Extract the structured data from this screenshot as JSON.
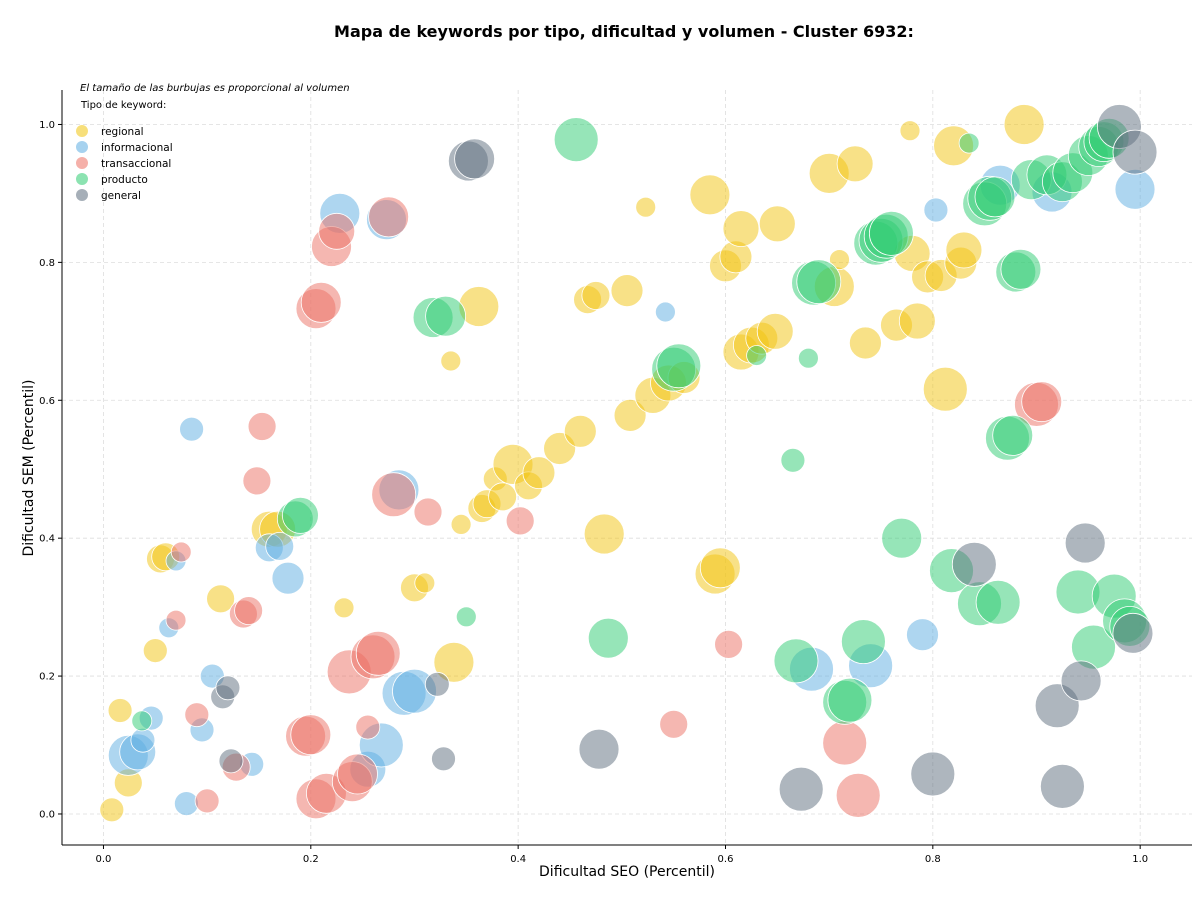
{
  "chart_data": {
    "type": "scatter",
    "title": "Mapa de keywords por tipo, dificultad y volumen - Cluster 6932:",
    "xlabel": "Dificultad SEO (Percentil)",
    "ylabel": "Dificultad SEM (Percentil)",
    "xlim": [
      -0.04,
      1.05
    ],
    "ylim": [
      -0.045,
      1.05
    ],
    "xticks": [
      "0.0",
      "0.2",
      "0.4",
      "0.6",
      "0.8",
      "1.0"
    ],
    "yticks": [
      "0.0",
      "0.2",
      "0.4",
      "0.6",
      "0.8",
      "1.0"
    ],
    "grid": true,
    "annotation": "El tamaño de las burbujas es proporcional al volumen",
    "legend": {
      "title": "Tipo de keyword:",
      "position": "top-left"
    },
    "series": [
      {
        "name": "regional",
        "color": "#F1C40F",
        "points": [
          [
            0.008,
            0.006,
            3
          ],
          [
            0.016,
            0.15,
            3
          ],
          [
            0.024,
            0.045,
            4
          ],
          [
            0.05,
            0.237,
            3
          ],
          [
            0.055,
            0.37,
            4
          ],
          [
            0.06,
            0.373,
            4
          ],
          [
            0.113,
            0.312,
            4
          ],
          [
            0.16,
            0.413,
            6
          ],
          [
            0.168,
            0.413,
            6
          ],
          [
            0.232,
            0.299,
            2
          ],
          [
            0.3,
            0.328,
            4
          ],
          [
            0.31,
            0.335,
            2
          ],
          [
            0.338,
            0.22,
            7
          ],
          [
            0.335,
            0.657,
            2
          ],
          [
            0.345,
            0.42,
            2
          ],
          [
            0.362,
            0.736,
            7
          ],
          [
            0.365,
            0.443,
            4
          ],
          [
            0.37,
            0.45,
            4
          ],
          [
            0.378,
            0.486,
            3
          ],
          [
            0.385,
            0.46,
            4
          ],
          [
            0.395,
            0.507,
            7
          ],
          [
            0.41,
            0.476,
            4
          ],
          [
            0.42,
            0.495,
            5
          ],
          [
            0.44,
            0.53,
            5
          ],
          [
            0.46,
            0.555,
            5
          ],
          [
            0.467,
            0.746,
            4
          ],
          [
            0.475,
            0.752,
            4
          ],
          [
            0.483,
            0.406,
            7
          ],
          [
            0.505,
            0.759,
            5
          ],
          [
            0.508,
            0.578,
            5
          ],
          [
            0.523,
            0.88,
            2
          ],
          [
            0.53,
            0.607,
            6
          ],
          [
            0.545,
            0.625,
            6
          ],
          [
            0.56,
            0.633,
            5
          ],
          [
            0.585,
            0.898,
            7
          ],
          [
            0.59,
            0.348,
            7
          ],
          [
            0.595,
            0.357,
            7
          ],
          [
            0.6,
            0.795,
            5
          ],
          [
            0.61,
            0.808,
            5
          ],
          [
            0.615,
            0.67,
            6
          ],
          [
            0.615,
            0.849,
            6
          ],
          [
            0.625,
            0.68,
            6
          ],
          [
            0.635,
            0.69,
            5
          ],
          [
            0.648,
            0.7,
            6
          ],
          [
            0.65,
            0.856,
            6
          ],
          [
            0.7,
            0.929,
            7
          ],
          [
            0.705,
            0.765,
            7
          ],
          [
            0.71,
            0.804,
            2
          ],
          [
            0.725,
            0.943,
            6
          ],
          [
            0.735,
            0.683,
            5
          ],
          [
            0.765,
            0.709,
            5
          ],
          [
            0.778,
            0.991,
            2
          ],
          [
            0.78,
            0.813,
            6
          ],
          [
            0.785,
            0.715,
            6
          ],
          [
            0.795,
            0.779,
            5
          ],
          [
            0.808,
            0.781,
            5
          ],
          [
            0.812,
            0.616,
            8
          ],
          [
            0.82,
            0.969,
            7
          ],
          [
            0.827,
            0.799,
            5
          ],
          [
            0.83,
            0.818,
            6
          ],
          [
            0.888,
            1.0,
            7
          ]
        ]
      },
      {
        "name": "informacional",
        "color": "#5DADE2",
        "points": [
          [
            0.024,
            0.085,
            7
          ],
          [
            0.033,
            0.09,
            6
          ],
          [
            0.038,
            0.107,
            3
          ],
          [
            0.046,
            0.139,
            3
          ],
          [
            0.063,
            0.27,
            2
          ],
          [
            0.07,
            0.367,
            2
          ],
          [
            0.08,
            0.015,
            3
          ],
          [
            0.085,
            0.558,
            3
          ],
          [
            0.095,
            0.122,
            3
          ],
          [
            0.105,
            0.2,
            3
          ],
          [
            0.143,
            0.072,
            3
          ],
          [
            0.16,
            0.386,
            4
          ],
          [
            0.17,
            0.388,
            4
          ],
          [
            0.178,
            0.342,
            5
          ],
          [
            0.228,
            0.871,
            7
          ],
          [
            0.255,
            0.065,
            6
          ],
          [
            0.268,
            0.1,
            8
          ],
          [
            0.273,
            0.862,
            7
          ],
          [
            0.285,
            0.47,
            7
          ],
          [
            0.29,
            0.175,
            8
          ],
          [
            0.3,
            0.178,
            8
          ],
          [
            0.542,
            0.728,
            2
          ],
          [
            0.683,
            0.21,
            8
          ],
          [
            0.74,
            0.215,
            8
          ],
          [
            0.79,
            0.26,
            5
          ],
          [
            0.803,
            0.876,
            3
          ],
          [
            0.865,
            0.912,
            7
          ],
          [
            0.915,
            0.902,
            7
          ],
          [
            0.995,
            0.906,
            7
          ]
        ]
      },
      {
        "name": "transaccional",
        "color": "#EC7063",
        "points": [
          [
            0.075,
            0.38,
            2
          ],
          [
            0.07,
            0.281,
            2
          ],
          [
            0.09,
            0.144,
            3
          ],
          [
            0.1,
            0.019,
            3
          ],
          [
            0.128,
            0.068,
            4
          ],
          [
            0.135,
            0.29,
            4
          ],
          [
            0.14,
            0.295,
            4
          ],
          [
            0.148,
            0.483,
            4
          ],
          [
            0.153,
            0.562,
            4
          ],
          [
            0.195,
            0.113,
            7
          ],
          [
            0.2,
            0.115,
            7
          ],
          [
            0.205,
            0.022,
            7
          ],
          [
            0.205,
            0.733,
            7
          ],
          [
            0.21,
            0.742,
            7
          ],
          [
            0.215,
            0.03,
            7
          ],
          [
            0.22,
            0.823,
            7
          ],
          [
            0.225,
            0.845,
            6
          ],
          [
            0.237,
            0.206,
            8
          ],
          [
            0.24,
            0.047,
            7
          ],
          [
            0.245,
            0.058,
            7
          ],
          [
            0.255,
            0.126,
            3
          ],
          [
            0.26,
            0.228,
            8
          ],
          [
            0.265,
            0.233,
            8
          ],
          [
            0.275,
            0.866,
            7
          ],
          [
            0.28,
            0.463,
            8
          ],
          [
            0.313,
            0.438,
            4
          ],
          [
            0.402,
            0.425,
            4
          ],
          [
            0.55,
            0.13,
            4
          ],
          [
            0.603,
            0.246,
            4
          ],
          [
            0.715,
            0.103,
            8
          ],
          [
            0.728,
            0.027,
            8
          ],
          [
            0.9,
            0.594,
            8
          ],
          [
            0.905,
            0.598,
            7
          ]
        ]
      },
      {
        "name": "producto",
        "color": "#2ECC71",
        "points": [
          [
            0.037,
            0.135,
            2
          ],
          [
            0.185,
            0.428,
            6
          ],
          [
            0.19,
            0.433,
            6
          ],
          [
            0.318,
            0.72,
            7
          ],
          [
            0.33,
            0.722,
            7
          ],
          [
            0.35,
            0.286,
            2
          ],
          [
            0.456,
            0.978,
            8
          ],
          [
            0.487,
            0.255,
            7
          ],
          [
            0.55,
            0.645,
            8
          ],
          [
            0.555,
            0.65,
            8
          ],
          [
            0.63,
            0.665,
            2
          ],
          [
            0.665,
            0.513,
            3
          ],
          [
            0.668,
            0.222,
            8
          ],
          [
            0.68,
            0.661,
            2
          ],
          [
            0.685,
            0.77,
            8
          ],
          [
            0.69,
            0.772,
            8
          ],
          [
            0.715,
            0.162,
            8
          ],
          [
            0.72,
            0.165,
            8
          ],
          [
            0.733,
            0.25,
            8
          ],
          [
            0.745,
            0.828,
            8
          ],
          [
            0.75,
            0.832,
            8
          ],
          [
            0.755,
            0.838,
            8
          ],
          [
            0.76,
            0.842,
            8
          ],
          [
            0.77,
            0.4,
            7
          ],
          [
            0.818,
            0.353,
            8
          ],
          [
            0.835,
            0.973,
            2
          ],
          [
            0.845,
            0.305,
            8
          ],
          [
            0.85,
            0.885,
            8
          ],
          [
            0.855,
            0.893,
            8
          ],
          [
            0.86,
            0.895,
            7
          ],
          [
            0.863,
            0.307,
            8
          ],
          [
            0.872,
            0.545,
            8
          ],
          [
            0.877,
            0.549,
            7
          ],
          [
            0.88,
            0.786,
            7
          ],
          [
            0.885,
            0.79,
            7
          ],
          [
            0.895,
            0.92,
            7
          ],
          [
            0.91,
            0.927,
            7
          ],
          [
            0.925,
            0.917,
            7
          ],
          [
            0.935,
            0.93,
            7
          ],
          [
            0.94,
            0.322,
            8
          ],
          [
            0.95,
            0.955,
            7
          ],
          [
            0.955,
            0.242,
            8
          ],
          [
            0.96,
            0.968,
            7
          ],
          [
            0.965,
            0.975,
            7
          ],
          [
            0.97,
            0.98,
            7
          ],
          [
            0.975,
            0.316,
            8
          ],
          [
            0.985,
            0.28,
            8
          ],
          [
            0.99,
            0.272,
            7
          ]
        ]
      },
      {
        "name": "general",
        "color": "#5D6D7E",
        "points": [
          [
            0.115,
            0.17,
            3
          ],
          [
            0.12,
            0.183,
            3
          ],
          [
            0.123,
            0.077,
            3
          ],
          [
            0.322,
            0.188,
            3
          ],
          [
            0.328,
            0.08,
            3
          ],
          [
            0.352,
            0.947,
            7
          ],
          [
            0.358,
            0.95,
            7
          ],
          [
            0.478,
            0.094,
            7
          ],
          [
            0.673,
            0.036,
            8
          ],
          [
            0.8,
            0.058,
            8
          ],
          [
            0.84,
            0.362,
            8
          ],
          [
            0.92,
            0.157,
            8
          ],
          [
            0.925,
            0.04,
            8
          ],
          [
            0.943,
            0.193,
            7
          ],
          [
            0.947,
            0.393,
            7
          ],
          [
            0.98,
            0.997,
            8
          ],
          [
            0.993,
            0.262,
            7
          ],
          [
            0.995,
            0.96,
            8
          ]
        ]
      }
    ]
  }
}
